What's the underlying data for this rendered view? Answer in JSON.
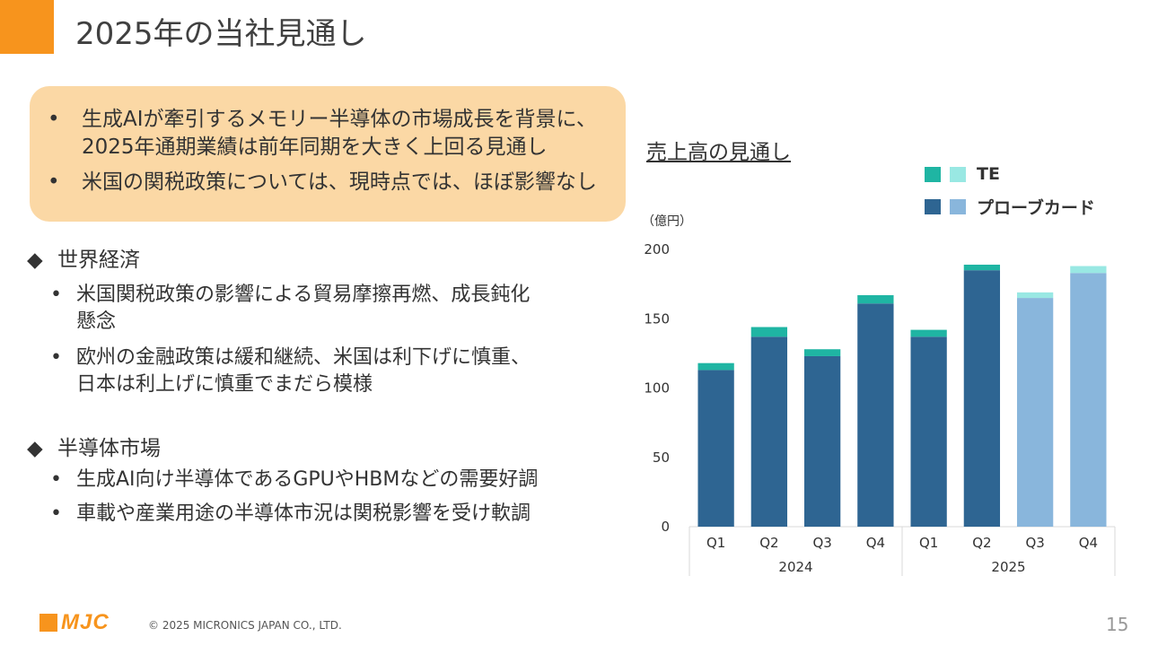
{
  "slide": {
    "title": "2025年の当社見通し",
    "callout_bullets": [
      "生成AIが牽引するメモリー半導体の市場成長を背景に、",
      "2025年通期業績は前年同期を大きく上回る見通し",
      "米国の関税政策については、現時点では、ほぼ影響なし"
    ],
    "sections": [
      {
        "marker": "◆",
        "heading": "世界経済",
        "bullets": [
          [
            "米国関税政策の影響による貿易摩擦再燃、成長鈍化",
            "懸念"
          ],
          [
            "欧州の金融政策は緩和継続、米国は利下げに慎重、",
            "日本は利上げに慎重でまだら模様"
          ]
        ]
      },
      {
        "marker": "◆",
        "heading": "半導体市場",
        "bullets": [
          [
            "生成AI向け半導体であるGPUやHBMなどの需要好調"
          ],
          [
            "車載や産業用途の半導体市況は関税影響を受け軟調"
          ]
        ]
      }
    ],
    "footer": {
      "logo_text": "MJC",
      "copyright": "© 2025 MICRONICS JAPAN CO., LTD.",
      "page_number": "15"
    }
  },
  "chart_data": {
    "type": "bar",
    "stacked": true,
    "title": "売上高の見通し",
    "unit_label": "（億円）",
    "categories": [
      "Q1",
      "Q2",
      "Q3",
      "Q4",
      "Q1",
      "Q2",
      "Q3",
      "Q4"
    ],
    "groups": [
      {
        "label": "2024",
        "categories": [
          "Q1",
          "Q2",
          "Q3",
          "Q4"
        ]
      },
      {
        "label": "2025",
        "categories": [
          "Q1",
          "Q2",
          "Q3",
          "Q4"
        ]
      }
    ],
    "series": [
      {
        "name": "プローブカード",
        "values": [
          113,
          137,
          123,
          161,
          137,
          185,
          165,
          183
        ],
        "actual_color": "#2E6592",
        "forecast_color": "#89B6DC"
      },
      {
        "name": "TE",
        "values": [
          5,
          7,
          5,
          6,
          5,
          4,
          4,
          5
        ],
        "actual_color": "#1FB5A3",
        "forecast_color": "#99E8E3"
      }
    ],
    "forecast_start_index": 6,
    "ylim": [
      0,
      200
    ],
    "yticks": [
      0,
      50,
      100,
      150,
      200
    ],
    "grid": false,
    "legend_position": "top-right"
  }
}
